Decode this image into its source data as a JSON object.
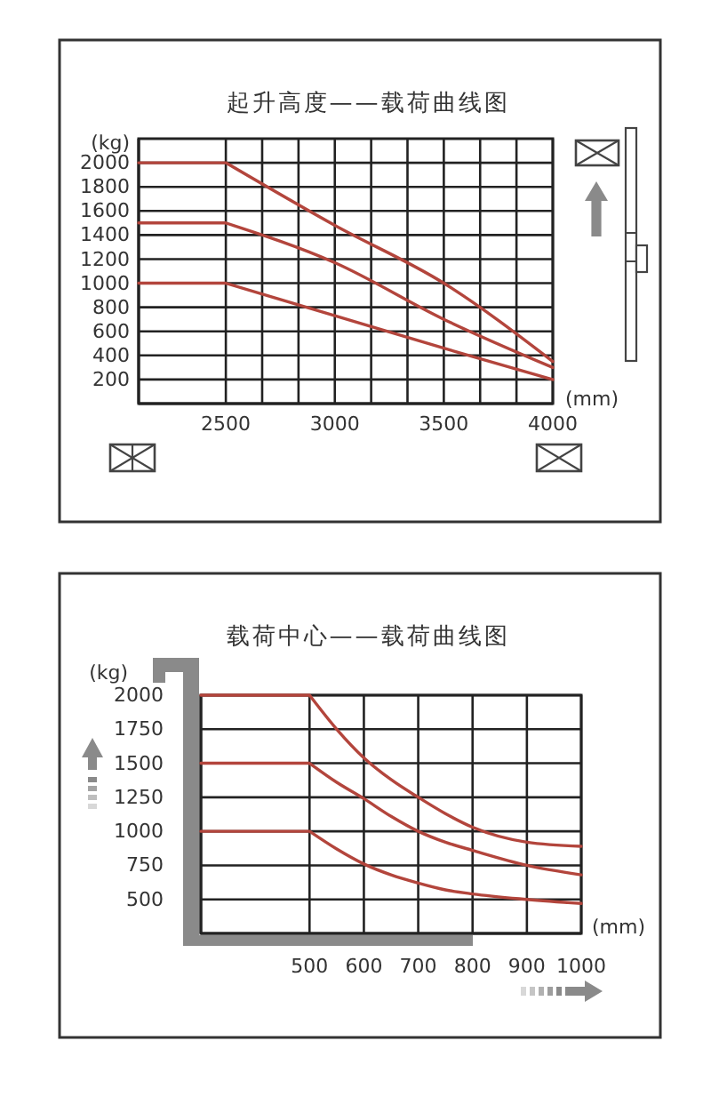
{
  "chart_data": [
    {
      "type": "line",
      "title": "起升高度——载荷曲线图",
      "xlabel": "(mm)",
      "ylabel": "(kg)",
      "x": [
        2100,
        2500,
        3000,
        3500,
        4000
      ],
      "series": [
        {
          "color": "#b3453c",
          "values": [
            2000,
            2000,
            1480,
            1000,
            350
          ]
        },
        {
          "color": "#b3453c",
          "values": [
            1500,
            1500,
            1170,
            700,
            300
          ]
        },
        {
          "color": "#b3453c",
          "values": [
            1000,
            1000,
            730,
            460,
            200
          ]
        }
      ],
      "xlim": [
        2100,
        4000
      ],
      "xticks": [
        2500,
        {
          "value": 2666.67,
          "label": null
        },
        {
          "value": 2833.33,
          "label": null
        },
        3000,
        {
          "value": 3166.67,
          "label": null
        },
        {
          "value": 3333.33,
          "label": null
        },
        3500,
        {
          "value": 3666.67,
          "label": null
        },
        {
          "value": 3833.33,
          "label": null
        },
        4000
      ],
      "ylim": [
        0,
        2200
      ],
      "yticks": [
        200,
        400,
        600,
        800,
        1000,
        1200,
        1400,
        1600,
        1800,
        2000
      ],
      "grid": true
    },
    {
      "type": "line",
      "title": "载荷中心——载荷曲线图",
      "xlabel": "(mm)",
      "ylabel": "(kg)",
      "x": [
        300,
        500,
        550,
        600,
        650,
        700,
        750,
        800,
        900,
        1000
      ],
      "series": [
        {
          "color": "#b3453c",
          "values": [
            2000,
            2000,
            1750,
            1540,
            1380,
            1250,
            1130,
            1030,
            920,
            890
          ]
        },
        {
          "color": "#b3453c",
          "values": [
            1500,
            1500,
            1360,
            1240,
            1110,
            1000,
            920,
            860,
            750,
            680
          ]
        },
        {
          "color": "#b3453c",
          "values": [
            1000,
            1000,
            870,
            760,
            680,
            620,
            570,
            540,
            500,
            470
          ]
        }
      ],
      "xlim": [
        300,
        1000
      ],
      "xticks": [
        500,
        600,
        700,
        800,
        900,
        1000
      ],
      "ylim": [
        250,
        2000
      ],
      "yticks": [
        500,
        750,
        1000,
        1250,
        1500,
        1750,
        2000
      ],
      "grid": true
    }
  ]
}
